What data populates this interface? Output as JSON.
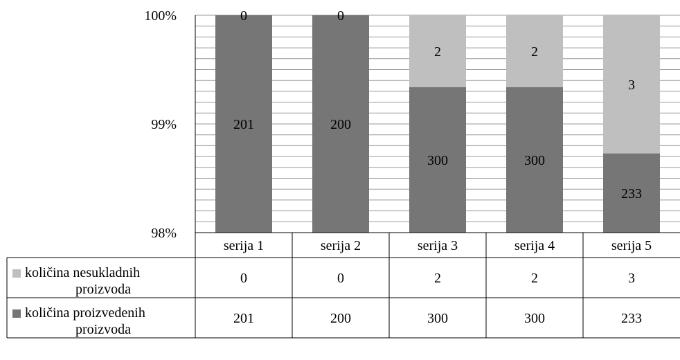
{
  "chart_data": {
    "type": "bar",
    "stacked": "percent",
    "categories": [
      "serija 1",
      "serija 2",
      "serija 3",
      "serija 4",
      "serija 5"
    ],
    "series": [
      {
        "name": "količina nesukladnih proizvoda",
        "values": [
          0,
          0,
          2,
          2,
          3
        ],
        "color": "#bfbfbf",
        "legend_lines": [
          "količina nesukladnih",
          "proizvoda"
        ]
      },
      {
        "name": "količina proizvedenih proizvoda",
        "values": [
          201,
          200,
          300,
          300,
          233
        ],
        "color": "#767676",
        "legend_lines": [
          "količina proizvedenih",
          "proizvoda"
        ]
      }
    ],
    "y_ticks": [
      "98%",
      "99%",
      "100%"
    ],
    "ylim": [
      0.98,
      1.0
    ],
    "grid": true,
    "legend": "data-table"
  }
}
